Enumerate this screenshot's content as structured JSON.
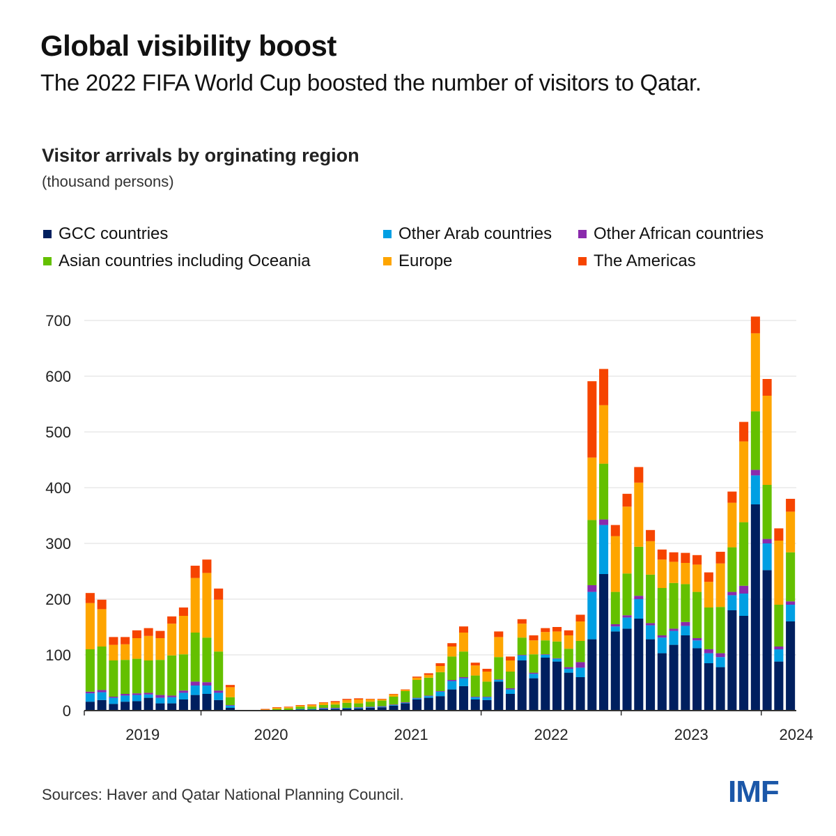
{
  "header": {
    "title": "Global visibility boost",
    "subtitle": "The 2022 FIFA World Cup boosted the number of visitors to Qatar."
  },
  "footer": {
    "source": "Sources: Haver and Qatar National Planning Council.",
    "logo": "IMF"
  },
  "chart_data": {
    "type": "bar",
    "stacked": true,
    "title": "Visitor arrivals by orginating region",
    "units_label": "(thousand persons)",
    "xlabel": "",
    "ylabel": "",
    "ylim": [
      0,
      700
    ],
    "yticks": [
      0,
      100,
      200,
      300,
      400,
      500,
      600,
      700
    ],
    "grid": true,
    "legend_position": "top",
    "frequency": "monthly",
    "x_start": "2019-03",
    "x_end": "2024-04",
    "year_labels": [
      {
        "label": "2019",
        "center_index": 4.5
      },
      {
        "label": "2020",
        "center_index": 15.5
      },
      {
        "label": "2021",
        "center_index": 27.5
      },
      {
        "label": "2022",
        "center_index": 39.5
      },
      {
        "label": "2023",
        "center_index": 51.5
      },
      {
        "label": "2024",
        "center_index": 60.5
      }
    ],
    "year_tick_indices": [
      0,
      10,
      22,
      34,
      46,
      58
    ],
    "series": [
      {
        "name": "GCC countries",
        "color": "#001f5f",
        "values": [
          16,
          19,
          12,
          16,
          17,
          23,
          13,
          13,
          20,
          28,
          30,
          19,
          5,
          0,
          0,
          0,
          1,
          1,
          2,
          2,
          3,
          3,
          4,
          4,
          5,
          6,
          9,
          13,
          20,
          23,
          26,
          38,
          44,
          20,
          19,
          52,
          30,
          90,
          58,
          95,
          88,
          68,
          60,
          128,
          245,
          142,
          147,
          165,
          128,
          103,
          118,
          135,
          112,
          85,
          78,
          180,
          170,
          370,
          252,
          88,
          160
        ]
      },
      {
        "name": "Other Arab countries",
        "color": "#009fe3",
        "values": [
          15,
          14,
          11,
          11,
          11,
          6,
          10,
          11,
          12,
          17,
          15,
          13,
          4,
          0,
          0,
          0,
          0,
          0,
          1,
          1,
          1,
          1,
          1,
          1,
          1,
          1,
          1,
          1,
          2,
          3,
          8,
          15,
          14,
          4,
          5,
          3,
          8,
          9,
          8,
          5,
          5,
          7,
          17,
          85,
          88,
          9,
          20,
          35,
          25,
          28,
          25,
          17,
          14,
          18,
          18,
          27,
          40,
          52,
          48,
          22,
          30
        ]
      },
      {
        "name": "Other African countries",
        "color": "#8a2aac",
        "values": [
          3,
          4,
          2,
          3,
          3,
          3,
          5,
          3,
          4,
          7,
          6,
          4,
          1,
          0,
          0,
          0,
          0,
          0,
          0,
          0,
          1,
          1,
          0,
          1,
          1,
          1,
          1,
          1,
          1,
          1,
          1,
          2,
          2,
          1,
          1,
          1,
          2,
          1,
          2,
          1,
          1,
          3,
          10,
          12,
          10,
          4,
          4,
          6,
          4,
          4,
          4,
          7,
          4,
          7,
          7,
          6,
          14,
          10,
          8,
          5,
          6
        ]
      },
      {
        "name": "Asian countries including Oceania",
        "color": "#64c000",
        "values": [
          76,
          78,
          65,
          61,
          62,
          58,
          63,
          72,
          65,
          88,
          80,
          70,
          14,
          0,
          0,
          1,
          2,
          3,
          4,
          4,
          5,
          6,
          9,
          7,
          9,
          10,
          14,
          20,
          32,
          32,
          34,
          42,
          46,
          38,
          27,
          40,
          30,
          31,
          33,
          25,
          30,
          33,
          38,
          117,
          100,
          58,
          75,
          88,
          87,
          85,
          82,
          68,
          83,
          75,
          83,
          80,
          114,
          105,
          97,
          75,
          88
        ]
      },
      {
        "name": "Europe",
        "color": "#fea500",
        "values": [
          83,
          67,
          28,
          28,
          37,
          44,
          39,
          57,
          69,
          98,
          116,
          93,
          18,
          0,
          0,
          1,
          2,
          2,
          2,
          3,
          4,
          4,
          5,
          7,
          4,
          2,
          4,
          2,
          4,
          5,
          11,
          18,
          34,
          18,
          18,
          36,
          20,
          25,
          25,
          15,
          18,
          24,
          35,
          112,
          105,
          100,
          120,
          115,
          60,
          51,
          38,
          38,
          49,
          46,
          78,
          80,
          145,
          140,
          160,
          115,
          73
        ]
      },
      {
        "name": "The Americas",
        "color": "#f64400",
        "values": [
          18,
          17,
          14,
          13,
          14,
          14,
          13,
          13,
          15,
          22,
          24,
          20,
          4,
          1,
          1,
          1,
          1,
          1,
          1,
          1,
          1,
          2,
          2,
          2,
          1,
          1,
          1,
          1,
          2,
          3,
          5,
          6,
          11,
          5,
          5,
          10,
          7,
          8,
          9,
          7,
          8,
          9,
          12,
          137,
          65,
          20,
          23,
          28,
          20,
          18,
          17,
          18,
          17,
          17,
          21,
          20,
          35,
          30,
          30,
          22,
          23
        ]
      }
    ]
  }
}
